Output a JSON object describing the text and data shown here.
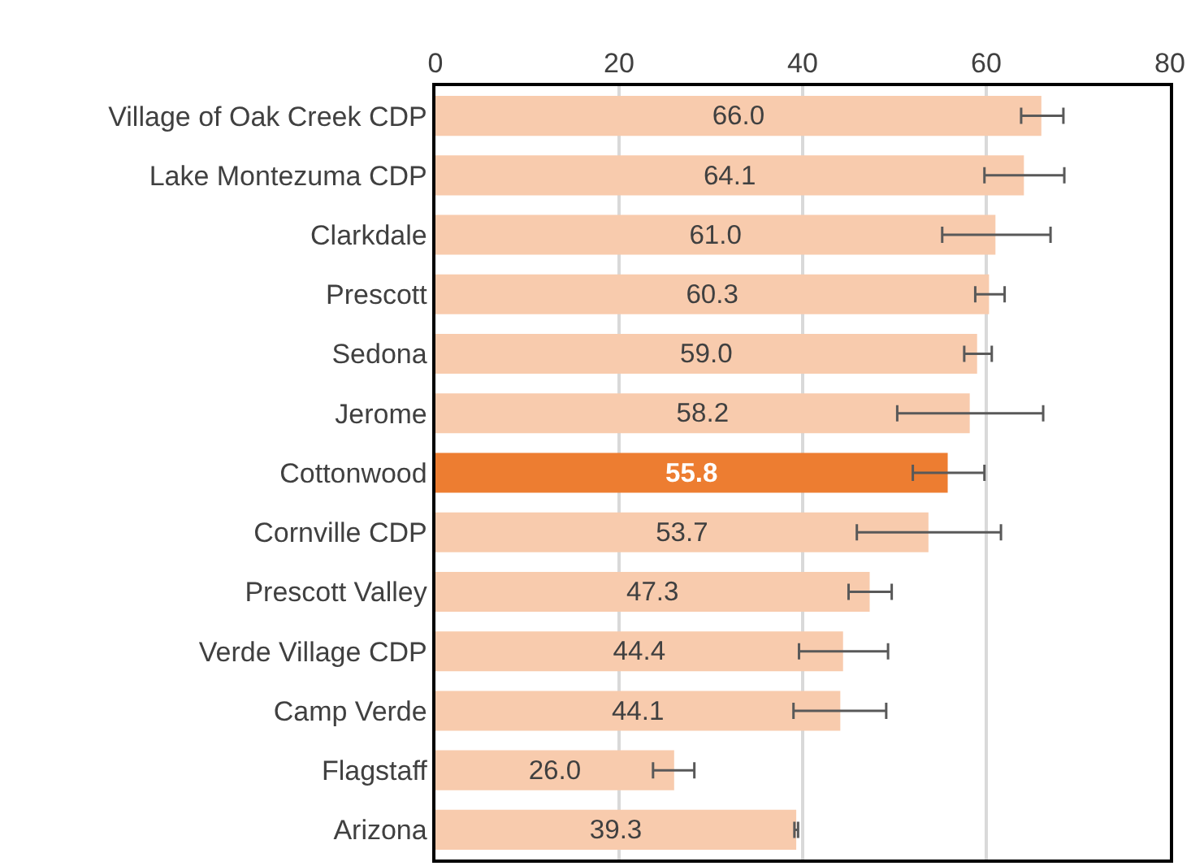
{
  "chart_data": {
    "type": "bar",
    "orientation": "horizontal",
    "categories": [
      "Village of Oak Creek CDP",
      "Lake Montezuma CDP",
      "Clarkdale",
      "Prescott",
      "Sedona",
      "Jerome",
      "Cottonwood",
      "Cornville CDP",
      "Prescott Valley",
      "Verde Village CDP",
      "Camp Verde",
      "Flagstaff",
      "Arizona"
    ],
    "values": [
      66.0,
      64.1,
      61.0,
      60.3,
      59.0,
      58.2,
      55.8,
      53.7,
      47.3,
      44.4,
      44.1,
      26.0,
      39.3
    ],
    "colors": [
      "#f8cbad",
      "#f8cbad",
      "#f8cbad",
      "#f8cbad",
      "#f8cbad",
      "#f8cbad",
      "#ed7d31",
      "#f8cbad",
      "#f8cbad",
      "#f8cbad",
      "#f8cbad",
      "#f8cbad",
      "#f8cbad"
    ],
    "errors": [
      [
        63.8,
        68.4
      ],
      [
        59.8,
        68.5
      ],
      [
        55.2,
        67.0
      ],
      [
        58.8,
        62.0
      ],
      [
        57.6,
        60.6
      ],
      [
        50.3,
        66.2
      ],
      [
        52.0,
        59.8
      ],
      [
        45.9,
        61.6
      ],
      [
        45.0,
        49.7
      ],
      [
        39.6,
        49.3
      ],
      [
        39.0,
        49.1
      ],
      [
        23.7,
        28.2
      ],
      [
        39.1,
        39.5
      ]
    ],
    "value_labels": [
      "66.0",
      "64.1",
      "61.0",
      "60.3",
      "59.0",
      "58.2",
      "55.8",
      "53.7",
      "47.3",
      "44.4",
      "44.1",
      "26.0",
      "39.3"
    ],
    "xlim": [
      0,
      80
    ],
    "xticks": [
      0,
      20,
      40,
      60,
      80
    ],
    "grid": "x"
  }
}
